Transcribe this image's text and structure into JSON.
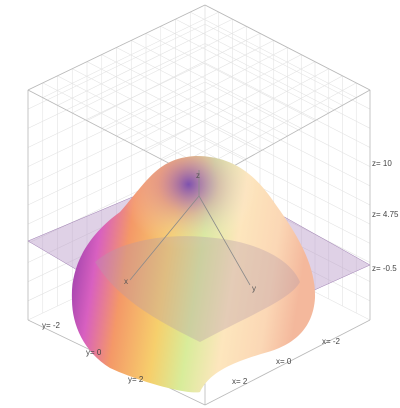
{
  "chart_data": {
    "type": "surface3d",
    "description_of_function": "",
    "surface": {
      "function": "z = 10 - x^2 - y^2",
      "x_range": [
        -2.7,
        2.7
      ],
      "y_range": [
        -2.7,
        2.7
      ],
      "z_peak": 10,
      "colormap": [
        "#7a2fa0",
        "#f05fb0",
        "#f9a060",
        "#f5d06a",
        "#d8ec9a",
        "#ffe8c0",
        "#f8c0a0"
      ]
    },
    "plane": {
      "z": -0.5,
      "color": "#a07ab8"
    },
    "axes": {
      "x": {
        "label": "x",
        "ticks": [
          "x= -2",
          "x= 0",
          "x= 2"
        ]
      },
      "y": {
        "label": "y",
        "ticks": [
          "y= -2",
          "y= 0",
          "y= 2"
        ]
      },
      "z": {
        "label": "z",
        "ticks": [
          "z= 10",
          "z= 4.75",
          "z= -0.5"
        ]
      }
    },
    "grid": true
  }
}
